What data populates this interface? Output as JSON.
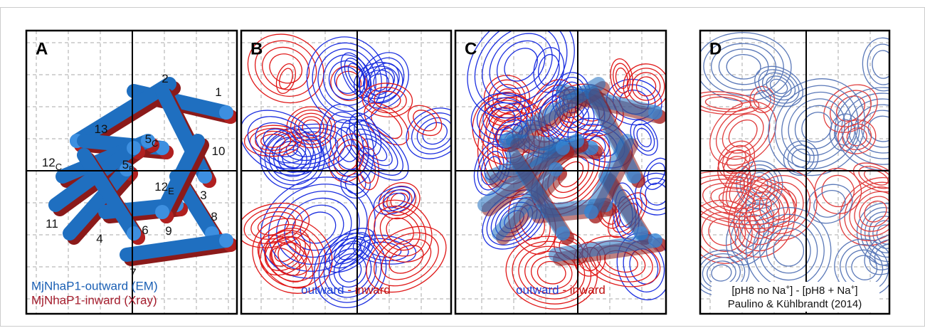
{
  "panels": [
    {
      "letter": "A",
      "helices": [
        {
          "text": "1"
        },
        {
          "text": "2"
        },
        {
          "text": "13"
        },
        {
          "text": "5",
          "sub": "C"
        },
        {
          "text": "10"
        },
        {
          "text": "12",
          "sub": "C"
        },
        {
          "text": "5",
          "sub": "E"
        },
        {
          "text": "12",
          "sub": "E"
        },
        {
          "text": "3"
        },
        {
          "text": "8"
        },
        {
          "text": "11"
        },
        {
          "text": "4"
        },
        {
          "text": "6"
        },
        {
          "text": "9"
        },
        {
          "text": "7"
        }
      ],
      "legend": [
        "MjNhaP1-outward (EM)",
        "MjNhaP1-inward (Xray)"
      ]
    },
    {
      "letter": "B",
      "caption": [
        "outward",
        "-",
        "inward"
      ]
    },
    {
      "letter": "C",
      "caption": [
        "outward",
        "-",
        "inward"
      ]
    },
    {
      "letter": "D",
      "caption_parts": [
        "[pH8 no Na",
        "+",
        "] - [pH8 + Na",
        "+",
        "]"
      ],
      "credit": "Paulino & Kühlbrandt (2014)"
    }
  ]
}
